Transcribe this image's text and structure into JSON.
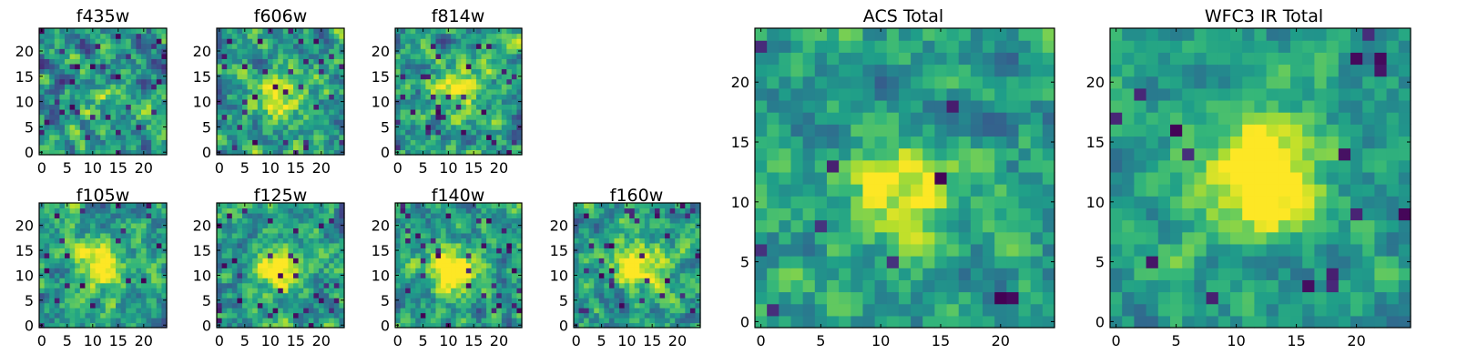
{
  "chart_data": [
    {
      "type": "heatmap",
      "title": "f435w",
      "x_ticks": [
        "0",
        "5",
        "10",
        "15",
        "20"
      ],
      "y_ticks": [
        "0",
        "5",
        "10",
        "15",
        "20"
      ],
      "xlim": [
        -0.5,
        24.5
      ],
      "ylim": [
        -0.5,
        24.5
      ],
      "grid_size": 25,
      "peak": [
        12,
        10
      ],
      "peak_strength": 0.15,
      "noise": 0.55,
      "dark_spots": 0.06,
      "colormap": "viridis",
      "seed": 11
    },
    {
      "type": "heatmap",
      "title": "f606w",
      "x_ticks": [
        "0",
        "5",
        "10",
        "15",
        "20"
      ],
      "y_ticks": [
        "0",
        "5",
        "10",
        "15",
        "20"
      ],
      "xlim": [
        -0.5,
        24.5
      ],
      "ylim": [
        -0.5,
        24.5
      ],
      "grid_size": 25,
      "peak": [
        12,
        11
      ],
      "peak_strength": 0.45,
      "noise": 0.5,
      "dark_spots": 0.05,
      "colormap": "viridis",
      "seed": 23
    },
    {
      "type": "heatmap",
      "title": "f814w",
      "x_ticks": [
        "0",
        "5",
        "10",
        "15",
        "20"
      ],
      "y_ticks": [
        "0",
        "5",
        "10",
        "15",
        "20"
      ],
      "xlim": [
        -0.5,
        24.5
      ],
      "ylim": [
        -0.5,
        24.5
      ],
      "grid_size": 25,
      "peak": [
        12,
        12
      ],
      "peak_strength": 0.4,
      "noise": 0.5,
      "dark_spots": 0.05,
      "colormap": "viridis",
      "seed": 37
    },
    {
      "type": "heatmap",
      "title": "f105w",
      "x_ticks": [
        "0",
        "5",
        "10",
        "15",
        "20"
      ],
      "y_ticks": [
        "0",
        "5",
        "10",
        "15",
        "20"
      ],
      "xlim": [
        -0.5,
        24.5
      ],
      "ylim": [
        -0.5,
        24.5
      ],
      "grid_size": 25,
      "peak": [
        12,
        12
      ],
      "peak_strength": 0.55,
      "noise": 0.45,
      "dark_spots": 0.04,
      "colormap": "viridis",
      "seed": 41
    },
    {
      "type": "heatmap",
      "title": "f125w",
      "x_ticks": [
        "0",
        "5",
        "10",
        "15",
        "20"
      ],
      "y_ticks": [
        "0",
        "5",
        "10",
        "15",
        "20"
      ],
      "xlim": [
        -0.5,
        24.5
      ],
      "ylim": [
        -0.5,
        24.5
      ],
      "grid_size": 25,
      "peak": [
        12,
        11
      ],
      "peak_strength": 0.55,
      "noise": 0.45,
      "dark_spots": 0.04,
      "colormap": "viridis",
      "seed": 53
    },
    {
      "type": "heatmap",
      "title": "f140w",
      "x_ticks": [
        "0",
        "5",
        "10",
        "15",
        "20"
      ],
      "y_ticks": [
        "0",
        "5",
        "10",
        "15",
        "20"
      ],
      "xlim": [
        -0.5,
        24.5
      ],
      "ylim": [
        -0.5,
        24.5
      ],
      "grid_size": 25,
      "peak": [
        11,
        11
      ],
      "peak_strength": 0.6,
      "noise": 0.45,
      "dark_spots": 0.05,
      "colormap": "viridis",
      "seed": 67
    },
    {
      "type": "heatmap",
      "title": "f160w",
      "x_ticks": [
        "0",
        "5",
        "10",
        "15",
        "20"
      ],
      "y_ticks": [
        "0",
        "5",
        "10",
        "15",
        "20"
      ],
      "xlim": [
        -0.5,
        24.5
      ],
      "ylim": [
        -0.5,
        24.5
      ],
      "grid_size": 25,
      "peak": [
        12,
        12
      ],
      "peak_strength": 0.6,
      "noise": 0.45,
      "dark_spots": 0.05,
      "colormap": "viridis",
      "seed": 79
    },
    {
      "type": "heatmap",
      "title": "ACS Total",
      "x_ticks": [
        "0",
        "5",
        "10",
        "15",
        "20"
      ],
      "y_ticks": [
        "0",
        "5",
        "10",
        "15",
        "20"
      ],
      "xlim": [
        -0.5,
        24.5
      ],
      "ylim": [
        -0.5,
        24.5
      ],
      "grid_size": 25,
      "peak": [
        12,
        11
      ],
      "peak_strength": 0.45,
      "noise": 0.4,
      "dark_spots": 0.02,
      "colormap": "viridis",
      "seed": 97
    },
    {
      "type": "heatmap",
      "title": "WFC3 IR Total",
      "x_ticks": [
        "0",
        "5",
        "10",
        "15",
        "20"
      ],
      "y_ticks": [
        "0",
        "5",
        "10",
        "15",
        "20"
      ],
      "xlim": [
        -0.5,
        24.5
      ],
      "ylim": [
        -0.5,
        24.5
      ],
      "grid_size": 25,
      "peak": [
        12,
        12
      ],
      "peak_strength": 0.75,
      "noise": 0.35,
      "dark_spots": 0.03,
      "colormap": "viridis",
      "seed": 131
    }
  ]
}
